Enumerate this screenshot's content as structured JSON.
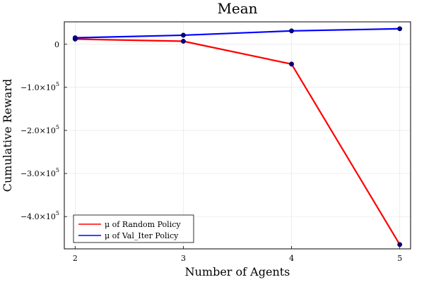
{
  "chart_data": {
    "type": "line",
    "title": "Mean",
    "xlabel": "Number of Agents",
    "ylabel": "Cumulative Reward",
    "x": [
      2,
      3,
      4,
      5
    ],
    "xlim": [
      1.9,
      5.1
    ],
    "ylim": [
      -475000,
      52000
    ],
    "xticks": [
      {
        "value": 2,
        "label": "2"
      },
      {
        "value": 3,
        "label": "3"
      },
      {
        "value": 4,
        "label": "4"
      },
      {
        "value": 5,
        "label": "5"
      }
    ],
    "yticks": [
      {
        "value": 0,
        "mantissa": "0",
        "exponent": ""
      },
      {
        "value": -100000,
        "mantissa": "−1.0×10",
        "exponent": "5"
      },
      {
        "value": -200000,
        "mantissa": "−2.0×10",
        "exponent": "5"
      },
      {
        "value": -300000,
        "mantissa": "−3.0×10",
        "exponent": "5"
      },
      {
        "value": -400000,
        "mantissa": "−4.0×10",
        "exponent": "5"
      }
    ],
    "grid": true,
    "legend_position": "bottom-left",
    "series": [
      {
        "name": "μ of Random Policy",
        "color": "#ff0000",
        "values": [
          12000,
          7000,
          -46000,
          -465000
        ]
      },
      {
        "name": "μ of Val_Iter Policy",
        "color": "#0000ff",
        "values": [
          15000,
          21000,
          31000,
          36000
        ]
      }
    ],
    "marker_color": "#00008b"
  }
}
